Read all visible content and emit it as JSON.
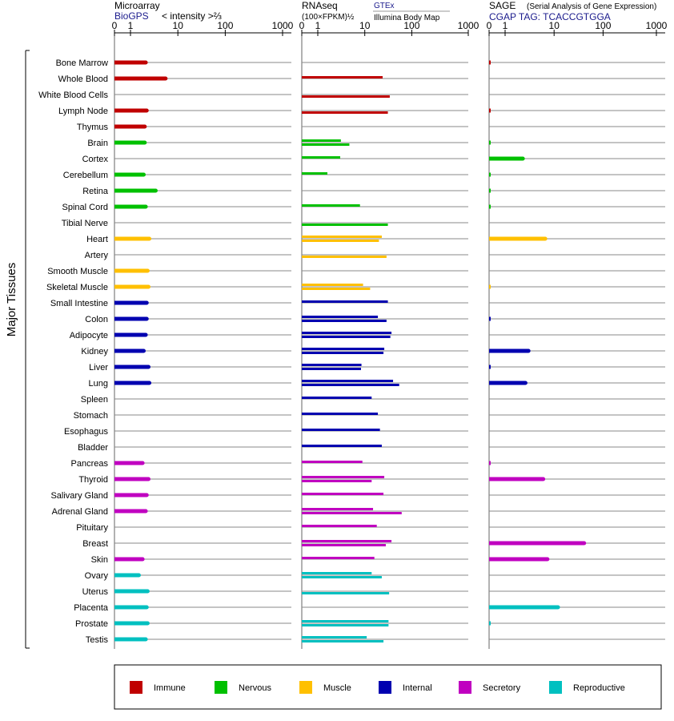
{
  "colors": {
    "Immune": "#c00000",
    "Nervous": "#00c000",
    "Muscle": "#ffc000",
    "Internal": "#0000b0",
    "Secretory": "#c000c0",
    "Reproductive": "#00c0c0"
  },
  "side_label": "Major Tissues",
  "tick_labels": [
    "0",
    "1",
    "10",
    "100",
    "1000"
  ],
  "panels": [
    {
      "title": "Microarray",
      "subtitle_source": "BioGPS",
      "subtitle_text": "< intensity >⅔"
    },
    {
      "title": "RNAseq",
      "subtitle_text": "(100×FPKM)½",
      "source1": "GTEx",
      "source2": "Illumina Body Map"
    },
    {
      "title": "SAGE",
      "title_note": "(Serial Analysis of Gene Expression)",
      "subtitle_text": "CGAP TAG: TCACCGTGGA"
    }
  ],
  "legend": [
    {
      "name": "Immune",
      "color": "#c00000"
    },
    {
      "name": "Nervous",
      "color": "#00c000"
    },
    {
      "name": "Muscle",
      "color": "#ffc000"
    },
    {
      "name": "Internal",
      "color": "#0000b0"
    },
    {
      "name": "Secretory",
      "color": "#c000c0"
    },
    {
      "name": "Reproductive",
      "color": "#00c0c0"
    }
  ],
  "chart_data": {
    "type": "bar",
    "x_scale": "pseudo-log",
    "xlim": [
      0,
      1000
    ],
    "categories": [
      {
        "tissue": "Bone Marrow",
        "group": "Immune",
        "microarray": 2.1,
        "rnaseq": [],
        "sage": 0.1
      },
      {
        "tissue": "Whole Blood",
        "group": "Immune",
        "microarray": 5.5,
        "rnaseq": [
          24.0
        ],
        "sage": null
      },
      {
        "tissue": "White Blood Cells",
        "group": "Immune",
        "microarray": null,
        "rnaseq": [
          34.0
        ],
        "sage": null
      },
      {
        "tissue": "Lymph Node",
        "group": "Immune",
        "microarray": 2.2,
        "rnaseq": [
          31.0
        ],
        "sage": 0.1
      },
      {
        "tissue": "Thymus",
        "group": "Immune",
        "microarray": 2.0,
        "rnaseq": [],
        "sage": null
      },
      {
        "tissue": "Brain",
        "group": "Nervous",
        "microarray": 2.0,
        "rnaseq": [
          3.1,
          4.7
        ],
        "sage": 0.1
      },
      {
        "tissue": "Cortex",
        "group": "Nervous",
        "microarray": null,
        "rnaseq": [
          3.0
        ],
        "sage": 2.3
      },
      {
        "tissue": "Cerebellum",
        "group": "Nervous",
        "microarray": 1.9,
        "rnaseq": [
          1.6
        ],
        "sage": 0.1
      },
      {
        "tissue": "Retina",
        "group": "Nervous",
        "microarray": 3.4,
        "rnaseq": [],
        "sage": 0.1
      },
      {
        "tissue": "Spinal Cord",
        "group": "Nervous",
        "microarray": 2.1,
        "rnaseq": [
          7.9
        ],
        "sage": 0.1
      },
      {
        "tissue": "Tibial Nerve",
        "group": "Nervous",
        "microarray": null,
        "rnaseq": [
          31.0
        ],
        "sage": null
      },
      {
        "tissue": "Heart",
        "group": "Muscle",
        "microarray": 2.5,
        "rnaseq": [
          23.0,
          20.0
        ],
        "sage": 6.6
      },
      {
        "tissue": "Artery",
        "group": "Muscle",
        "microarray": null,
        "rnaseq": [
          29.0
        ],
        "sage": null
      },
      {
        "tissue": "Smooth Muscle",
        "group": "Muscle",
        "microarray": 2.3,
        "rnaseq": [],
        "sage": null
      },
      {
        "tissue": "Skeletal Muscle",
        "group": "Muscle",
        "microarray": 2.4,
        "rnaseq": [
          9.2,
          13.0
        ],
        "sage": 0.1
      },
      {
        "tissue": "Small Intestine",
        "group": "Internal",
        "microarray": 2.2,
        "rnaseq": [
          31.0
        ],
        "sage": null
      },
      {
        "tissue": "Colon",
        "group": "Internal",
        "microarray": 2.2,
        "rnaseq": [
          19.0,
          29.0
        ],
        "sage": 0.1
      },
      {
        "tissue": "Adipocyte",
        "group": "Internal",
        "microarray": 2.1,
        "rnaseq": [
          37.0,
          35.0
        ],
        "sage": null
      },
      {
        "tissue": "Kidney",
        "group": "Internal",
        "microarray": 1.9,
        "rnaseq": [
          26.0,
          25.0
        ],
        "sage": 3.0
      },
      {
        "tissue": "Liver",
        "group": "Internal",
        "microarray": 2.4,
        "rnaseq": [
          8.5,
          8.3
        ],
        "sage": 0.1
      },
      {
        "tissue": "Lung",
        "group": "Internal",
        "microarray": 2.5,
        "rnaseq": [
          40.0,
          54.0
        ],
        "sage": 2.6
      },
      {
        "tissue": "Spleen",
        "group": "Internal",
        "microarray": null,
        "rnaseq": [
          14.0
        ],
        "sage": null
      },
      {
        "tissue": "Stomach",
        "group": "Internal",
        "microarray": null,
        "rnaseq": [
          19.0
        ],
        "sage": null
      },
      {
        "tissue": "Esophagus",
        "group": "Internal",
        "microarray": null,
        "rnaseq": [
          21.0
        ],
        "sage": null
      },
      {
        "tissue": "Bladder",
        "group": "Internal",
        "microarray": null,
        "rnaseq": [
          23.0
        ],
        "sage": null
      },
      {
        "tissue": "Pancreas",
        "group": "Secretory",
        "microarray": 1.8,
        "rnaseq": [
          8.9
        ],
        "sage": 0.1
      },
      {
        "tissue": "Thyroid",
        "group": "Secretory",
        "microarray": 2.4,
        "rnaseq": [
          26.0,
          14.0
        ],
        "sage": 6.0
      },
      {
        "tissue": "Salivary Gland",
        "group": "Secretory",
        "microarray": 2.2,
        "rnaseq": [
          25.0
        ],
        "sage": null
      },
      {
        "tissue": "Adrenal Gland",
        "group": "Secretory",
        "microarray": 2.1,
        "rnaseq": [
          15.0,
          61.0
        ],
        "sage": null
      },
      {
        "tissue": "Pituitary",
        "group": "Secretory",
        "microarray": null,
        "rnaseq": [
          18.0
        ],
        "sage": null
      },
      {
        "tissue": "Breast",
        "group": "Secretory",
        "microarray": null,
        "rnaseq": [
          37.0,
          28.0
        ],
        "sage": 41.0
      },
      {
        "tissue": "Skin",
        "group": "Secretory",
        "microarray": 1.8,
        "rnaseq": [
          16.0
        ],
        "sage": 7.3
      },
      {
        "tissue": "Ovary",
        "group": "Reproductive",
        "microarray": 1.5,
        "rnaseq": [
          14.0,
          23.0
        ],
        "sage": null
      },
      {
        "tissue": "Uterus",
        "group": "Reproductive",
        "microarray": 2.3,
        "rnaseq": [
          33.0
        ],
        "sage": null
      },
      {
        "tissue": "Placenta",
        "group": "Reproductive",
        "microarray": 2.2,
        "rnaseq": [],
        "sage": 12.0
      },
      {
        "tissue": "Prostate",
        "group": "Reproductive",
        "microarray": 2.3,
        "rnaseq": [
          32.0,
          32.0
        ],
        "sage": 0.1
      },
      {
        "tissue": "Testis",
        "group": "Reproductive",
        "microarray": 2.1,
        "rnaseq": [
          11.0,
          25.0
        ],
        "sage": null
      }
    ]
  }
}
